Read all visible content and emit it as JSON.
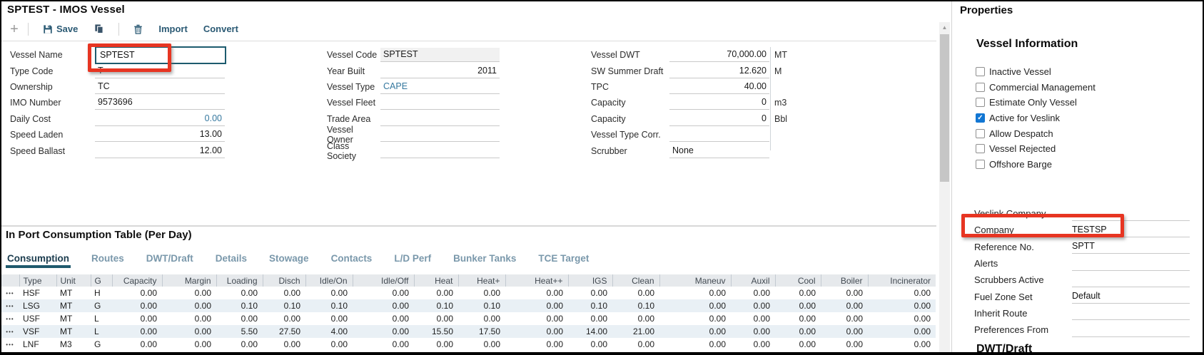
{
  "window": {
    "title": "SPTEST - IMOS Vessel"
  },
  "toolbar": {
    "new_label": "+",
    "save_label": "Save",
    "import_label": "Import",
    "convert_label": "Convert"
  },
  "form": {
    "left": [
      {
        "label": "Vessel Name",
        "value": "SPTEST",
        "type": "input-focused"
      },
      {
        "label": "Type Code",
        "value": "T"
      },
      {
        "label": "Ownership",
        "value": "TC"
      },
      {
        "label": "IMO Number",
        "value": "9573696"
      },
      {
        "label": "Daily Cost",
        "value": "0.00",
        "align": "right",
        "color": "blue"
      },
      {
        "label": "Speed Laden",
        "value": "13.00",
        "align": "right"
      },
      {
        "label": "Speed Ballast",
        "value": "12.00",
        "align": "right"
      }
    ],
    "middle": [
      {
        "label": "Vessel Code",
        "value": "SPTEST",
        "readonly": true
      },
      {
        "label": "Year Built",
        "value": "2011",
        "align": "right"
      },
      {
        "label": "Vessel Type",
        "value": "CAPE",
        "color": "blue"
      },
      {
        "label": "Vessel Fleet",
        "value": ""
      },
      {
        "label": "Trade Area",
        "value": ""
      },
      {
        "label": "Vessel Owner",
        "value": ""
      },
      {
        "label": "Class Society",
        "value": ""
      }
    ],
    "right": [
      {
        "label": "Vessel DWT",
        "value": "70,000.00",
        "unit": "MT",
        "align": "right"
      },
      {
        "label": "SW Summer Draft",
        "value": "12.620",
        "unit": "M",
        "align": "right"
      },
      {
        "label": "TPC",
        "value": "40.00",
        "unit": "",
        "align": "right"
      },
      {
        "label": "Capacity",
        "value": "0",
        "unit": "m3",
        "align": "right"
      },
      {
        "label": "Capacity",
        "value": "0",
        "unit": "Bbl",
        "align": "right"
      },
      {
        "label": "Vessel Type Corr.",
        "value": "",
        "unit": ""
      },
      {
        "label": "Scrubber",
        "value": "None",
        "unit": ""
      }
    ]
  },
  "consumption": {
    "section_title": "In Port Consumption Table (Per Day)",
    "tabs": [
      {
        "label": "Consumption",
        "active": true
      },
      {
        "label": "Routes",
        "active": false
      },
      {
        "label": "DWT/Draft",
        "active": false
      },
      {
        "label": "Details",
        "active": false
      },
      {
        "label": "Stowage",
        "active": false
      },
      {
        "label": "Contacts",
        "active": false
      },
      {
        "label": "L/D Perf",
        "active": false
      },
      {
        "label": "Bunker Tanks",
        "active": false
      },
      {
        "label": "TCE Target",
        "active": false
      }
    ],
    "table": {
      "columns": [
        "",
        "Type",
        "Unit",
        "G",
        "Capacity",
        "Margin",
        "Loading",
        "Disch",
        "Idle/On",
        "Idle/Off",
        "Heat",
        "Heat+",
        "Heat++",
        "IGS",
        "Clean",
        "Maneuv",
        "Auxil",
        "Cool",
        "Boiler",
        "Incinerator"
      ],
      "row_menu_glyph": "•••",
      "rows": [
        {
          "type": "HSF",
          "unit": "MT",
          "g": "H",
          "values": [
            "0.00",
            "0.00",
            "0.00",
            "0.00",
            "0.00",
            "0.00",
            "0.00",
            "0.00",
            "0.00",
            "0.00",
            "0.00",
            "0.00",
            "0.00",
            "0.00",
            "0.00",
            "0.00"
          ]
        },
        {
          "type": "LSG",
          "unit": "MT",
          "g": "G",
          "values": [
            "0.00",
            "0.00",
            "0.10",
            "0.10",
            "0.10",
            "0.00",
            "0.10",
            "0.10",
            "0.00",
            "0.10",
            "0.10",
            "0.00",
            "0.00",
            "0.00",
            "0.00",
            "0.00"
          ]
        },
        {
          "type": "USF",
          "unit": "MT",
          "g": "L",
          "values": [
            "0.00",
            "0.00",
            "0.00",
            "0.00",
            "0.00",
            "0.00",
            "0.00",
            "0.00",
            "0.00",
            "0.00",
            "0.00",
            "0.00",
            "0.00",
            "0.00",
            "0.00",
            "0.00"
          ]
        },
        {
          "type": "VSF",
          "unit": "MT",
          "g": "L",
          "values": [
            "0.00",
            "0.00",
            "5.50",
            "27.50",
            "4.00",
            "0.00",
            "15.50",
            "17.50",
            "0.00",
            "14.00",
            "21.00",
            "0.00",
            "0.00",
            "0.00",
            "0.00",
            "0.00"
          ]
        },
        {
          "type": "LNF",
          "unit": "M3",
          "g": "G",
          "values": [
            "0.00",
            "0.00",
            "0.00",
            "0.00",
            "0.00",
            "0.00",
            "0.00",
            "0.00",
            "0.00",
            "0.00",
            "0.00",
            "0.00",
            "0.00",
            "0.00",
            "0.00",
            "0.00"
          ]
        }
      ]
    }
  },
  "properties": {
    "title": "Properties",
    "vessel_information": {
      "title": "Vessel Information",
      "checkboxes": [
        {
          "label": "Inactive Vessel",
          "checked": false
        },
        {
          "label": "Commercial Management",
          "checked": false
        },
        {
          "label": "Estimate Only Vessel",
          "checked": false
        },
        {
          "label": "Active for Veslink",
          "checked": true
        },
        {
          "label": "Allow Despatch",
          "checked": false
        },
        {
          "label": "Vessel Rejected",
          "checked": false
        },
        {
          "label": "Offshore Barge",
          "checked": false
        }
      ]
    },
    "fields": [
      {
        "label": "Veslink Company",
        "value": ""
      },
      {
        "label": "Company",
        "value": "TESTSP",
        "highlighted": true
      },
      {
        "label": "Reference No.",
        "value": "SPTT"
      },
      {
        "label": "Alerts",
        "value": ""
      },
      {
        "label": "Scrubbers Active",
        "value": ""
      },
      {
        "label": "Fuel Zone Set",
        "value": "Default"
      },
      {
        "label": "Inherit Route",
        "value": ""
      },
      {
        "label": "Preferences From",
        "value": ""
      }
    ],
    "next_section_title": "DWT/Draft"
  },
  "colors": {
    "accent_teal": "#1d5b6e",
    "toolbar_blue": "#2b5a74",
    "link_blue": "#35789f",
    "annotation_red": "#e73522",
    "checkbox_checked_blue": "#1276d3",
    "table_header_bg": "#e6e9ec",
    "table_alt_row_bg": "#e9f0f5"
  }
}
